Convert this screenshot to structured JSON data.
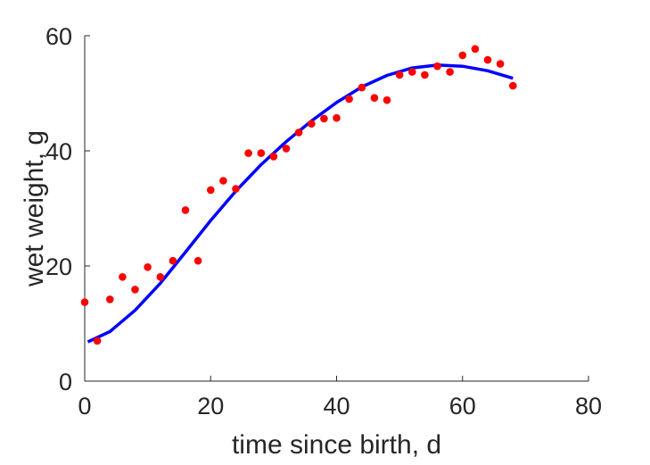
{
  "chart_data": {
    "type": "scatter",
    "xlabel": "time since birth, d",
    "ylabel": "wet weight, g",
    "xlim": [
      0,
      80
    ],
    "ylim": [
      0,
      60
    ],
    "xticks": [
      0,
      20,
      40,
      60,
      80
    ],
    "yticks": [
      0,
      20,
      40,
      60
    ],
    "grid": false,
    "box": false,
    "colors": {
      "points": "#ff0000",
      "fit": "#0000ff",
      "axes": "#262626"
    },
    "series": [
      {
        "kind": "scatter",
        "x": [
          0,
          2,
          4,
          6,
          8,
          10,
          12,
          14,
          16,
          18,
          20,
          22,
          24,
          26,
          28,
          30,
          32,
          34,
          36,
          38,
          40,
          42,
          44,
          46,
          48,
          50,
          52,
          54,
          56,
          58,
          60,
          62,
          64,
          66,
          68
        ],
        "y": [
          13.7,
          7.0,
          14.2,
          18.1,
          15.9,
          19.8,
          18.1,
          20.9,
          29.7,
          20.9,
          33.2,
          34.8,
          33.4,
          39.6,
          39.6,
          39.0,
          40.4,
          43.2,
          44.7,
          45.6,
          45.7,
          49.0,
          51.0,
          49.2,
          48.8,
          53.2,
          53.7,
          53.2,
          54.7,
          53.7,
          56.6,
          57.7,
          55.8,
          55.1,
          51.3
        ]
      },
      {
        "kind": "line",
        "x": [
          0.5,
          4,
          8,
          12,
          16,
          20,
          24,
          28,
          32,
          36,
          40,
          44,
          48,
          52,
          56,
          60,
          64,
          68
        ],
        "y": [
          6.8,
          8.6,
          12.3,
          17.0,
          22.4,
          27.9,
          33.0,
          37.6,
          41.6,
          45.2,
          48.4,
          51.1,
          53.1,
          54.4,
          54.9,
          54.7,
          53.9,
          52.6
        ]
      }
    ]
  }
}
